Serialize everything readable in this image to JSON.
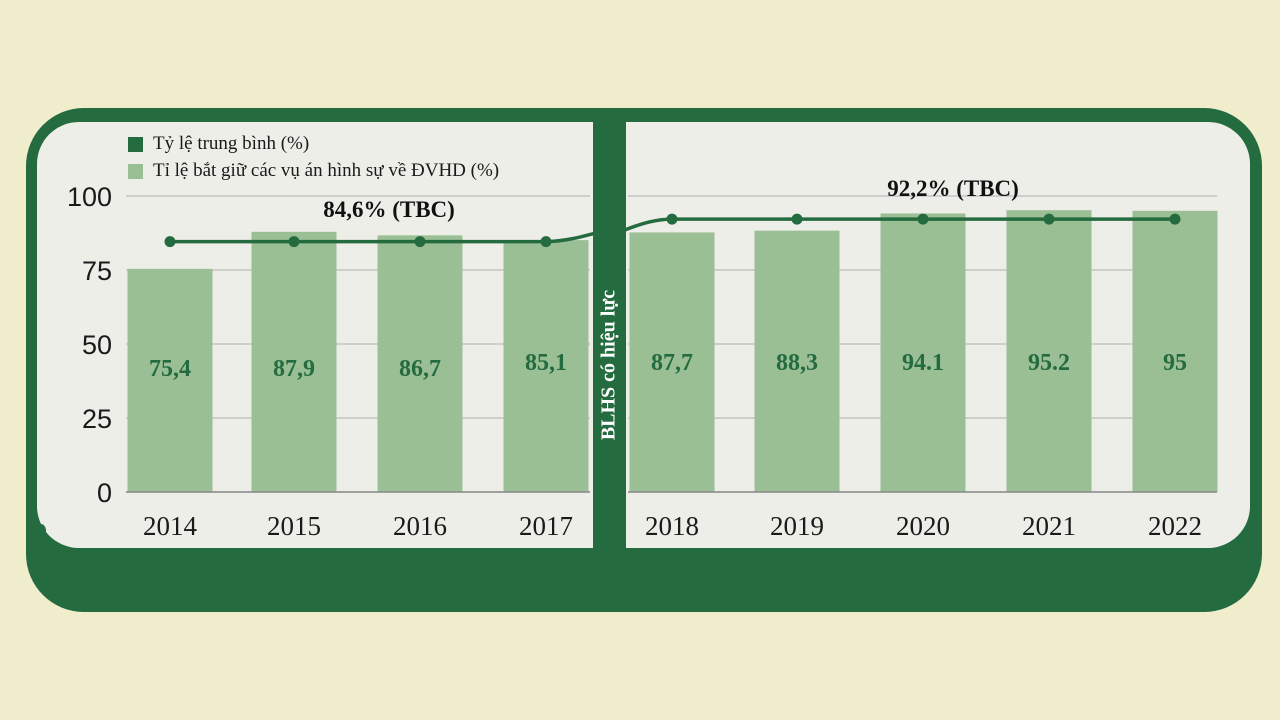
{
  "chart_data": {
    "type": "bar",
    "categories": [
      "2014",
      "2015",
      "2016",
      "2017",
      "2018",
      "2019",
      "2020",
      "2021",
      "2022"
    ],
    "series": [
      {
        "name": "Tỉ lệ bắt giữ các vụ án hình sự về ĐVHD (%)",
        "type": "bar",
        "values": [
          75.4,
          87.9,
          86.7,
          85.1,
          87.7,
          88.3,
          94.1,
          95.2,
          95
        ],
        "value_labels": [
          "75,4",
          "87,9",
          "86,7",
          "85,1",
          "87,7",
          "88,3",
          "94.1",
          "95.2",
          "95"
        ],
        "color": "#9bbf95"
      },
      {
        "name": "Tỷ lệ trung bình (%)",
        "type": "line",
        "values": [
          84.6,
          84.6,
          84.6,
          84.6,
          92.2,
          92.2,
          92.2,
          92.2,
          92.2
        ],
        "color": "#246b3f"
      }
    ],
    "ylim": [
      0,
      100
    ],
    "yticks": [
      "0",
      "25",
      "50",
      "75",
      "100"
    ],
    "annotations": [
      "84,6% (TBC)",
      "92,2% (TBC)"
    ],
    "divider_label": "BLHS có hiệu lực",
    "grid": true,
    "legend_placement": "top-left"
  }
}
